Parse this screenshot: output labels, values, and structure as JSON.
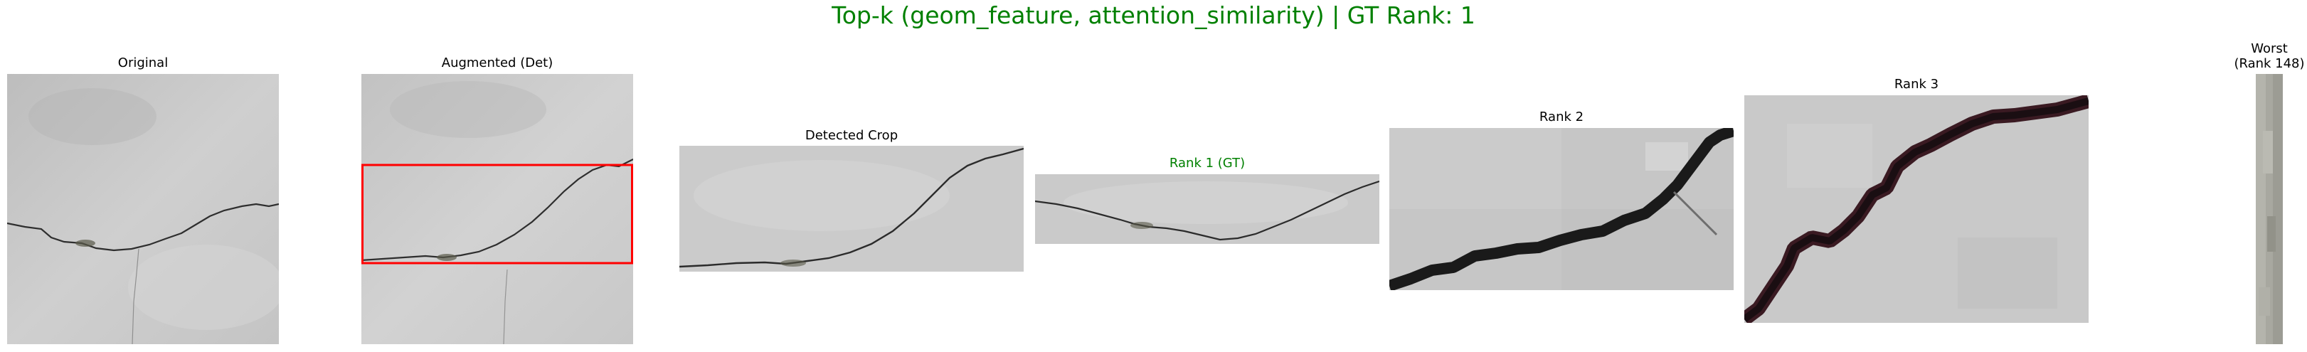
{
  "figure": {
    "title": "Top-k (geom_feature, attention_similarity) | GT Rank: 1",
    "title_color": "#008000"
  },
  "panels": [
    {
      "key": "original",
      "title": "Original",
      "title_color": "#000000"
    },
    {
      "key": "augmented",
      "title": "Augmented (Det)",
      "title_color": "#000000",
      "box_color": "#ff0000"
    },
    {
      "key": "detected",
      "title": "Detected Crop",
      "title_color": "#000000"
    },
    {
      "key": "rank1",
      "title": "Rank 1 (GT)",
      "title_color": "#008000"
    },
    {
      "key": "rank2",
      "title": "Rank 2",
      "title_color": "#000000"
    },
    {
      "key": "rank3",
      "title": "Rank 3",
      "title_color": "#000000"
    },
    {
      "key": "worst",
      "title_line1": "Worst",
      "title_line2": "(Rank 148)",
      "title_color": "#000000"
    }
  ]
}
